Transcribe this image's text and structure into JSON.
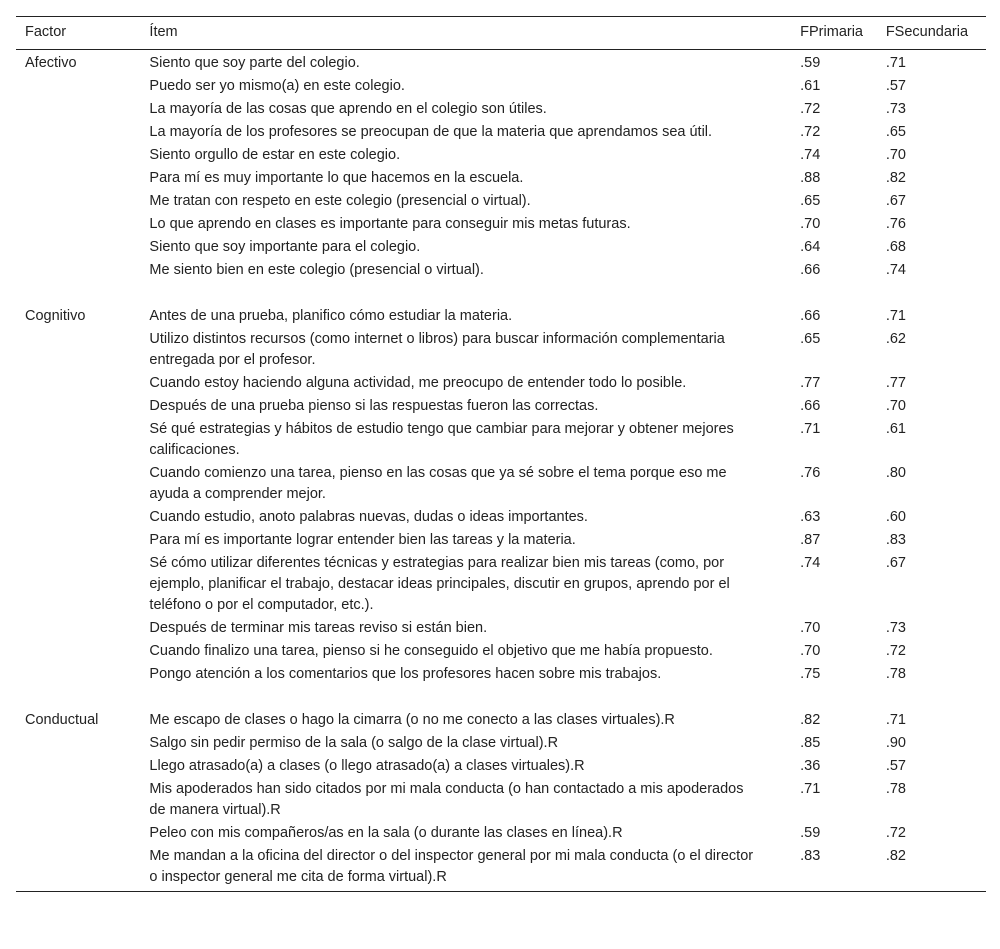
{
  "header": {
    "factor": "Factor",
    "item": "Ítem",
    "fprimaria": "FPrimaria",
    "fsecundaria": "FSecundaria"
  },
  "groups": [
    {
      "factor": "Afectivo",
      "rows": [
        {
          "item": "Siento que soy parte del colegio.",
          "fp": ".59",
          "fs": ".71"
        },
        {
          "item": "Puedo ser yo mismo(a) en este colegio.",
          "fp": ".61",
          "fs": ".57"
        },
        {
          "item": "La mayoría de las cosas que aprendo en el colegio son útiles.",
          "fp": ".72",
          "fs": ".73"
        },
        {
          "item": "La mayoría de los profesores se preocupan de que la materia que aprendamos sea útil.",
          "fp": ".72",
          "fs": ".65"
        },
        {
          "item": "Siento orgullo de estar en este colegio.",
          "fp": ".74",
          "fs": ".70"
        },
        {
          "item": "Para mí es muy importante lo que hacemos en la escuela.",
          "fp": ".88",
          "fs": ".82"
        },
        {
          "item": "Me tratan con respeto en este colegio (presencial o virtual).",
          "fp": ".65",
          "fs": ".67"
        },
        {
          "item": "Lo que aprendo en clases es importante para conseguir mis metas futuras.",
          "fp": ".70",
          "fs": ".76"
        },
        {
          "item": "Siento que soy importante para el colegio.",
          "fp": ".64",
          "fs": ".68"
        },
        {
          "item": "Me siento bien en este colegio (presencial o virtual).",
          "fp": ".66",
          "fs": ".74"
        }
      ]
    },
    {
      "factor": "Cognitivo",
      "rows": [
        {
          "item": "Antes de una prueba, planifico cómo estudiar la materia.",
          "fp": ".66",
          "fs": ".71"
        },
        {
          "item": "Utilizo distintos recursos (como internet o libros) para buscar información complementaria entregada por el profesor.",
          "fp": ".65",
          "fs": ".62"
        },
        {
          "item": "Cuando estoy haciendo alguna actividad, me preocupo de entender todo lo posible.",
          "fp": ".77",
          "fs": ".77"
        },
        {
          "item": "Después de una prueba pienso si las respuestas fueron las correctas.",
          "fp": ".66",
          "fs": ".70"
        },
        {
          "item": "Sé qué estrategias y hábitos de estudio tengo que cambiar para mejorar y obtener mejores calificaciones.",
          "fp": ".71",
          "fs": ".61"
        },
        {
          "item": "Cuando comienzo una tarea, pienso en las cosas que ya sé sobre el tema porque eso me ayuda a comprender mejor.",
          "fp": ".76",
          "fs": ".80"
        },
        {
          "item": "Cuando estudio, anoto palabras nuevas, dudas o ideas importantes.",
          "fp": ".63",
          "fs": ".60"
        },
        {
          "item": "Para mí es importante lograr entender bien las tareas y la materia.",
          "fp": ".87",
          "fs": ".83"
        },
        {
          "item": "Sé cómo utilizar diferentes técnicas y estrategias para realizar bien mis tareas (como, por ejemplo, planificar el trabajo, destacar ideas principales, discutir en grupos, aprendo por el teléfono o por el computador, etc.).",
          "fp": ".74",
          "fs": ".67"
        },
        {
          "item": "Después de terminar mis tareas reviso si están bien.",
          "fp": ".70",
          "fs": ".73"
        },
        {
          "item": "Cuando finalizo una tarea, pienso si he conseguido el objetivo que me había propuesto.",
          "fp": ".70",
          "fs": ".72"
        },
        {
          "item": "Pongo atención a los comentarios que los profesores hacen sobre mis trabajos.",
          "fp": ".75",
          "fs": ".78"
        }
      ]
    },
    {
      "factor": "Conductual",
      "rows": [
        {
          "item": "Me escapo de clases o hago la cimarra (o no me conecto a las clases virtuales).R",
          "fp": ".82",
          "fs": ".71"
        },
        {
          "item": "Salgo sin pedir permiso de la sala (o salgo de la clase virtual).R",
          "fp": ".85",
          "fs": ".90"
        },
        {
          "item": "Llego atrasado(a) a clases (o llego atrasado(a) a clases virtuales).R",
          "fp": ".36",
          "fs": ".57"
        },
        {
          "item": "Mis apoderados han sido citados por mi mala conducta (o han contactado a mis apoderados de manera virtual).R",
          "fp": ".71",
          "fs": ".78"
        },
        {
          "item": "Peleo con mis compañeros/as en la sala (o durante las clases en línea).R",
          "fp": ".59",
          "fs": ".72"
        },
        {
          "item": "Me mandan a la oficina del director o del inspector general por mi mala conducta (o el director o inspector general me cita de forma virtual).R",
          "fp": ".83",
          "fs": ".82"
        }
      ]
    }
  ]
}
